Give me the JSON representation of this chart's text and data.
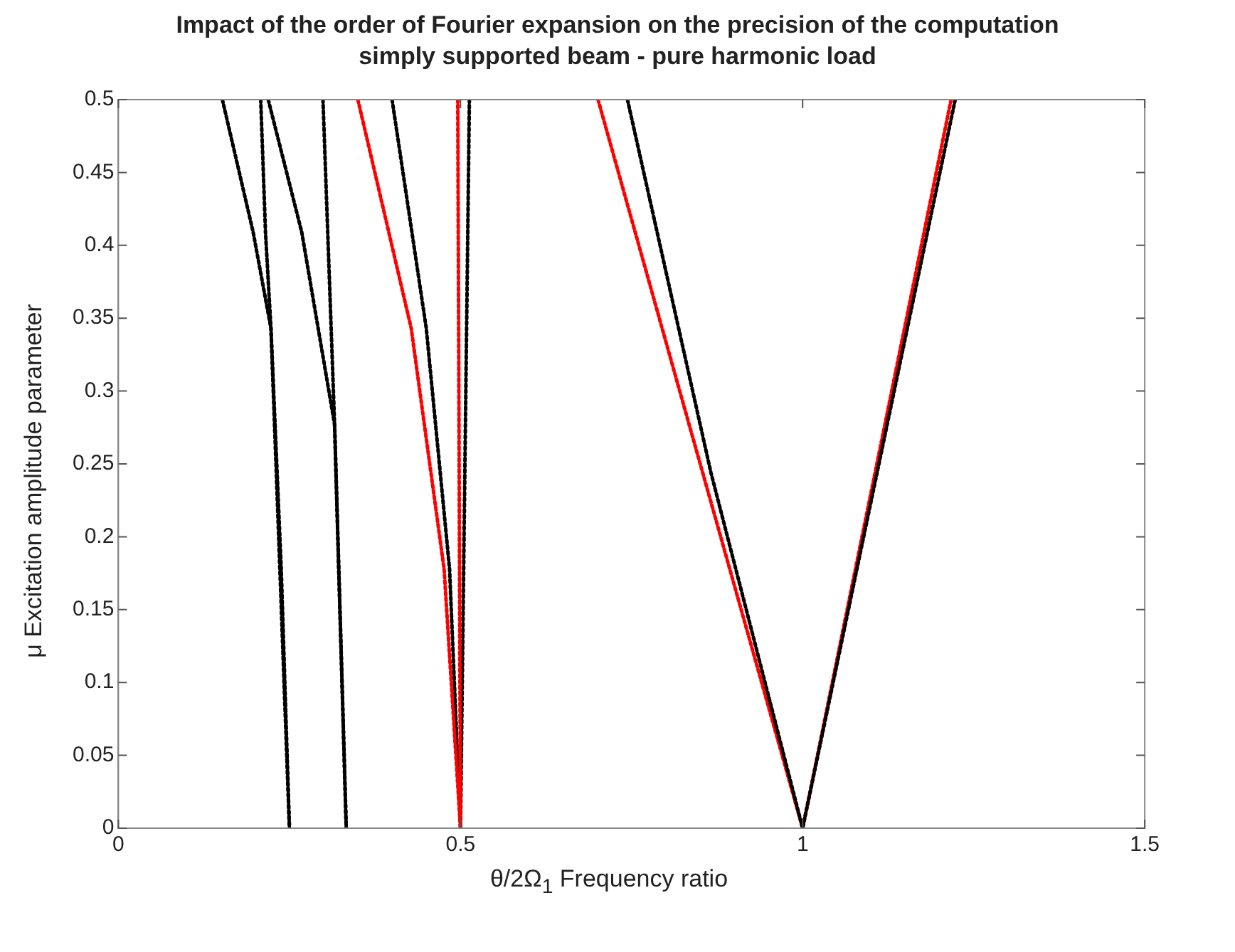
{
  "chart_data": {
    "type": "line",
    "title": "Impact of the order of Fourier expansion on the precision of the computation",
    "subtitle": "simply supported beam - pure harmonic load",
    "xlabel": "θ/2Ω$_{1}$ Frequency ratio",
    "ylabel": "μ Excitation amplitude parameter",
    "xlim": [
      0,
      1.5
    ],
    "xticks": [
      0,
      0.5,
      1,
      1.5
    ],
    "ylim": [
      0,
      0.5
    ],
    "yticks": [
      0,
      0.05,
      0.1,
      0.15,
      0.2,
      0.25,
      0.3,
      0.35,
      0.4,
      0.45,
      0.5
    ],
    "grid": false,
    "legend": false,
    "line_style": "dotted",
    "marker": "none",
    "series": [
      {
        "color": "#000000",
        "x": [
          0.152,
          0.197,
          0.223,
          0.238,
          0.25
        ],
        "values": [
          0.5,
          0.409,
          0.343,
          0.178,
          0
        ]
      },
      {
        "color": "#000000",
        "x": [
          0.208,
          0.215,
          0.223,
          0.25
        ],
        "values": [
          0.5,
          0.409,
          0.343,
          0
        ]
      },
      {
        "color": "#000000",
        "x": [
          0.219,
          0.268,
          0.316,
          0.333
        ],
        "values": [
          0.5,
          0.409,
          0.277,
          0
        ]
      },
      {
        "color": "#000000",
        "x": [
          0.299,
          0.316,
          0.333
        ],
        "values": [
          0.5,
          0.277,
          0
        ]
      },
      {
        "color": "#ff0000",
        "x": [
          0.35,
          0.428,
          0.476,
          0.5
        ],
        "values": [
          0.5,
          0.343,
          0.178,
          0
        ]
      },
      {
        "color": "#ff0000",
        "x": [
          0.496,
          0.5
        ],
        "values": [
          0.5,
          0
        ]
      },
      {
        "color": "#000000",
        "x": [
          0.4,
          0.45,
          0.484,
          0.5
        ],
        "values": [
          0.5,
          0.343,
          0.178,
          0
        ]
      },
      {
        "color": "#000000",
        "x": [
          0.513,
          0.5
        ],
        "values": [
          0.5,
          0
        ]
      },
      {
        "color": "#000000",
        "x": [
          0.744,
          0.866,
          1
        ],
        "values": [
          0.5,
          0.244,
          0
        ]
      },
      {
        "color": "#ff0000",
        "x": [
          0.701,
          0.815,
          1
        ],
        "values": [
          0.5,
          0.309,
          0
        ]
      },
      {
        "color": "#000000",
        "x": [
          1.223,
          1
        ],
        "values": [
          0.5,
          0
        ]
      },
      {
        "color": "#ff0000",
        "x": [
          1.217,
          1
        ],
        "values": [
          0.5,
          0
        ]
      }
    ]
  }
}
